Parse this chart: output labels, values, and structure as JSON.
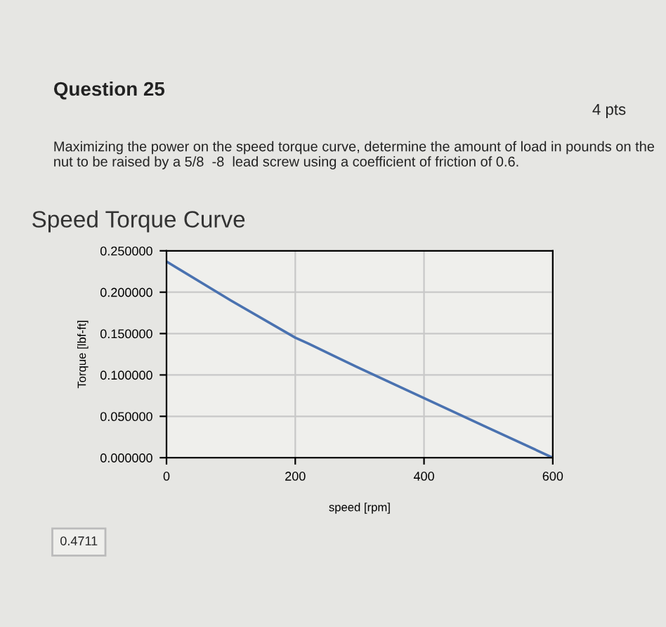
{
  "chart_data": {
    "type": "line",
    "title": "Speed Torque Curve",
    "xlabel": "speed [rpm]",
    "ylabel": "Torque [lbf-ft]",
    "x": [
      0,
      100,
      200,
      220,
      300,
      400,
      500,
      600
    ],
    "series": [
      {
        "color": "#4a72b0",
        "values": [
          0.237,
          0.19,
          0.145,
          0.138,
          0.108,
          0.072,
          0.036,
          0.0
        ]
      }
    ],
    "xlim": [
      0,
      600
    ],
    "xticks": [
      0,
      200,
      400,
      600
    ],
    "ylim": [
      0,
      0.25
    ],
    "yticks": [
      {
        "value": 0,
        "label": "0.000000"
      },
      {
        "value": 0.05,
        "label": "0.050000"
      },
      {
        "value": 0.1,
        "label": "0.100000"
      },
      {
        "value": 0.15,
        "label": "0.150000"
      },
      {
        "value": 0.2,
        "label": "0.200000"
      },
      {
        "value": 0.25,
        "label": "0.250000"
      }
    ],
    "grid": true,
    "marker": "none",
    "line_style": "solid",
    "annotations": [
      "Question 25",
      "4 pts",
      "Maximizing the power on the speed torque curve, determine the amount of load in pounds on the nut to be raised by a 5/8  -8  lead screw using a coefficient of friction of 0.6.",
      "0.4711"
    ]
  }
}
